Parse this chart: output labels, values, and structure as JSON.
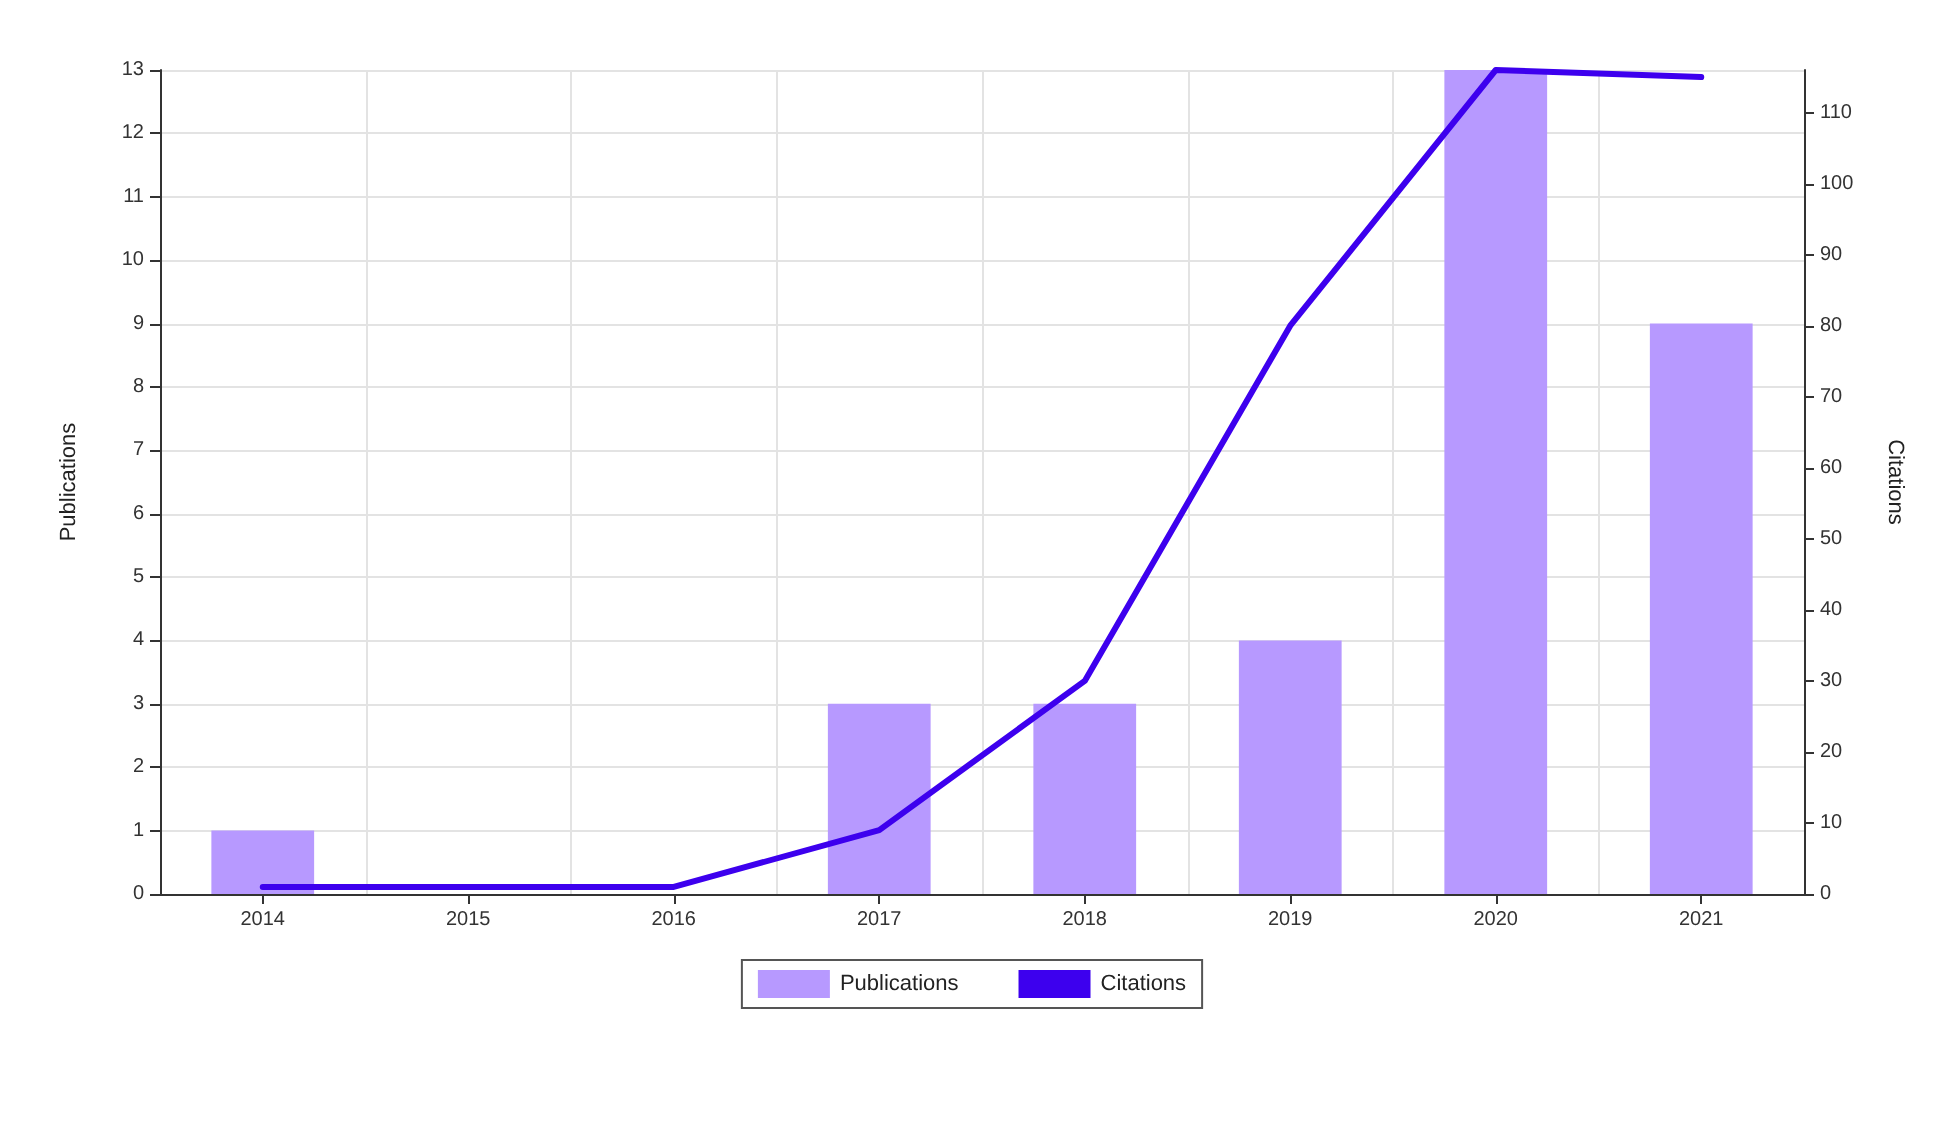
{
  "chart_data": {
    "type": "bar",
    "categories": [
      "2014",
      "2015",
      "2016",
      "2017",
      "2018",
      "2019",
      "2020",
      "2021"
    ],
    "series": [
      {
        "name": "Publications",
        "color": "#b799ff",
        "values": [
          1,
          0,
          0,
          3,
          3,
          4,
          13,
          9
        ]
      },
      {
        "name": "Citations",
        "type": "line",
        "axis": "y2",
        "color": "#3d00ee",
        "values": [
          1,
          1,
          1,
          9,
          30,
          80,
          116,
          115
        ]
      }
    ],
    "ylabel": "Publications",
    "y2label": "Citations",
    "ylim": [
      0,
      13
    ],
    "yticks": [
      0,
      1,
      2,
      3,
      4,
      5,
      6,
      7,
      8,
      9,
      10,
      11,
      12,
      13
    ],
    "y2lim": [
      0,
      116
    ],
    "y2ticks": [
      0,
      10,
      20,
      30,
      40,
      50,
      60,
      70,
      80,
      90,
      100,
      110
    ],
    "grid": true,
    "legend": "bottom",
    "marker": "none",
    "line_style": "solid"
  }
}
